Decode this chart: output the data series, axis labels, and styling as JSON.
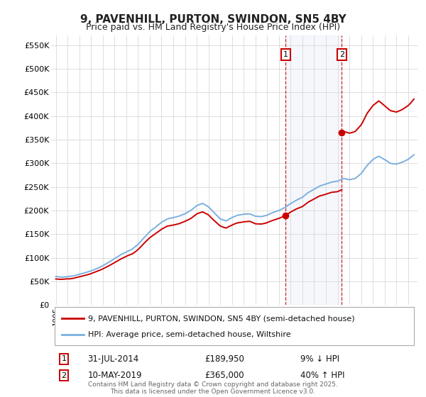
{
  "title": "9, PAVENHILL, PURTON, SWINDON, SN5 4BY",
  "subtitle": "Price paid vs. HM Land Registry's House Price Index (HPI)",
  "ylabel_ticks": [
    "£0",
    "£50K",
    "£100K",
    "£150K",
    "£200K",
    "£250K",
    "£300K",
    "£350K",
    "£400K",
    "£450K",
    "£500K",
    "£550K"
  ],
  "ytick_values": [
    0,
    50000,
    100000,
    150000,
    200000,
    250000,
    300000,
    350000,
    400000,
    450000,
    500000,
    550000
  ],
  "ylim": [
    0,
    570000
  ],
  "background_color": "#ffffff",
  "plot_bg": "#ffffff",
  "hpi_color": "#7ab0e0",
  "price_color": "#cc0000",
  "marker1_date": 2014.58,
  "marker1_price": 189950,
  "marker2_date": 2019.36,
  "marker2_price": 365000,
  "legend_entries": [
    "9, PAVENHILL, PURTON, SWINDON, SN5 4BY (semi-detached house)",
    "HPI: Average price, semi-detached house, Wiltshire"
  ],
  "annotation1": [
    "1",
    "31-JUL-2014",
    "£189,950",
    "9% ↓ HPI"
  ],
  "annotation2": [
    "2",
    "10-MAY-2019",
    "£365,000",
    "40% ↑ HPI"
  ],
  "footer": "Contains HM Land Registry data © Crown copyright and database right 2025.\nThis data is licensed under the Open Government Licence v3.0.",
  "xmin": 1994.6,
  "xmax": 2025.8
}
